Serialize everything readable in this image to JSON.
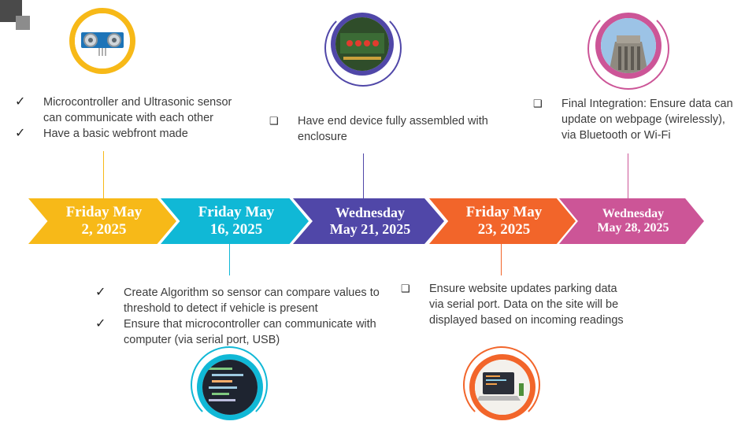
{
  "colors": {
    "yellow": "#f7b918",
    "cyan": "#10b8d6",
    "indigo": "#5047a8",
    "orange": "#f2652a",
    "pink": "#cc5597"
  },
  "milestones": [
    {
      "date": "Friday May\n2, 2025",
      "color": "#f7b918"
    },
    {
      "date": "Friday May\n16, 2025",
      "color": "#10b8d6"
    },
    {
      "date": "Wednesday\nMay 21, 2025",
      "color": "#5047a8"
    },
    {
      "date": "Friday May\n23, 2025",
      "color": "#f2652a"
    },
    {
      "date": "Wednesday\nMay 28, 2025",
      "color": "#cc5597"
    }
  ],
  "notes": {
    "m1": [
      "Microcontroller and Ultrasonic sensor can communicate with each other",
      "Have a basic webfront made"
    ],
    "m2": [
      "Create Algorithm so sensor can compare values to threshold to detect if vehicle is present",
      "Ensure that microcontroller can communicate with computer (via serial port, USB)"
    ],
    "m3": [
      "Have end device fully assembled with enclosure"
    ],
    "m4": [
      "Ensure website updates parking data via serial port. Data on the site will be displayed based on incoming readings"
    ],
    "m5": [
      "Final Integration: Ensure data can update on webpage (wirelessly), via Bluetooth or Wi-Fi"
    ]
  },
  "icons": {
    "check": "✓",
    "box": "❑",
    "sensor": "ultrasonic-sensor-image",
    "board": "circuit-board-image",
    "code": "code-editor-image",
    "laptop": "laptop-image",
    "building": "library-building-image"
  }
}
